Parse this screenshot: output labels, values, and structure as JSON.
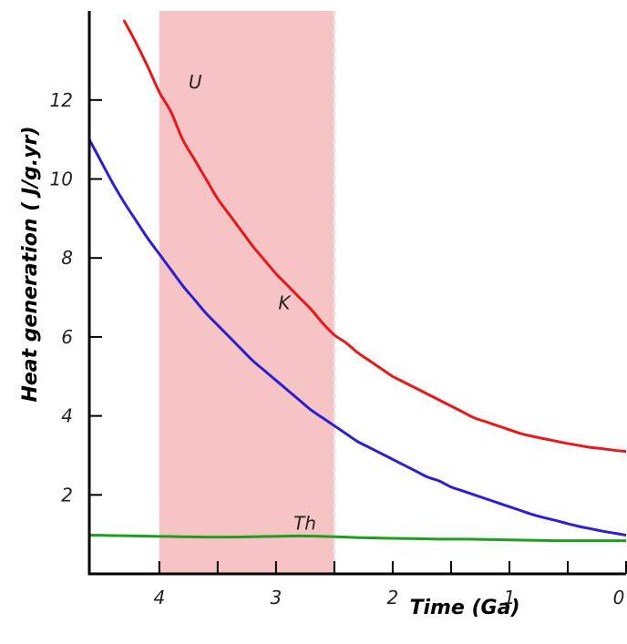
{
  "chart_data": {
    "type": "line",
    "title": "",
    "xlabel": "Time (Ga)",
    "ylabel": "Heat generation ( J/g.yr)",
    "xlim": [
      4.6,
      0
    ],
    "ylim": [
      0,
      14
    ],
    "x_reversed": true,
    "grid": false,
    "x_ticks": [
      4,
      3.5,
      3,
      2.5,
      2,
      1.5,
      1,
      0.5,
      0
    ],
    "x_tick_labels": [
      {
        "value": 4,
        "label": "4"
      },
      {
        "value": 3,
        "label": "3"
      },
      {
        "value": 2,
        "label": "2"
      },
      {
        "value": 1,
        "label": "1"
      },
      {
        "value": 0,
        "label": "0"
      }
    ],
    "y_ticks": [
      2,
      4,
      6,
      8,
      10,
      12
    ],
    "y_tick_labels": [
      {
        "value": 2,
        "label": "2"
      },
      {
        "value": 4,
        "label": "4"
      },
      {
        "value": 6,
        "label": "6"
      },
      {
        "value": 8,
        "label": "8"
      },
      {
        "value": 10,
        "label": "10"
      },
      {
        "value": 12,
        "label": "12"
      }
    ],
    "shaded_region": {
      "x_start": 4.0,
      "x_end": 2.5,
      "color": "#f7c4c6",
      "edge_color": "#f5dcdc"
    },
    "series": [
      {
        "name": "U",
        "color": "#e8181a",
        "label": "U",
        "label_at": {
          "x": 3.75,
          "y": 12.3
        },
        "points": [
          [
            4.3,
            14.0
          ],
          [
            4.2,
            13.45
          ],
          [
            4.1,
            12.85
          ],
          [
            4.0,
            12.2
          ],
          [
            3.9,
            11.7
          ],
          [
            3.8,
            11.0
          ],
          [
            3.7,
            10.5
          ],
          [
            3.6,
            10.0
          ],
          [
            3.5,
            9.5
          ],
          [
            3.4,
            9.1
          ],
          [
            3.3,
            8.7
          ],
          [
            3.2,
            8.3
          ],
          [
            3.1,
            7.95
          ],
          [
            3.0,
            7.6
          ],
          [
            2.9,
            7.3
          ],
          [
            2.8,
            7.0
          ],
          [
            2.7,
            6.7
          ],
          [
            2.6,
            6.35
          ],
          [
            2.5,
            6.05
          ],
          [
            2.4,
            5.85
          ],
          [
            2.3,
            5.6
          ],
          [
            2.2,
            5.4
          ],
          [
            2.1,
            5.2
          ],
          [
            2.0,
            5.0
          ],
          [
            1.9,
            4.85
          ],
          [
            1.8,
            4.7
          ],
          [
            1.7,
            4.55
          ],
          [
            1.6,
            4.4
          ],
          [
            1.5,
            4.25
          ],
          [
            1.4,
            4.1
          ],
          [
            1.3,
            3.95
          ],
          [
            1.2,
            3.85
          ],
          [
            1.1,
            3.75
          ],
          [
            1.0,
            3.65
          ],
          [
            0.9,
            3.55
          ],
          [
            0.8,
            3.48
          ],
          [
            0.7,
            3.42
          ],
          [
            0.6,
            3.36
          ],
          [
            0.5,
            3.3
          ],
          [
            0.4,
            3.25
          ],
          [
            0.3,
            3.2
          ],
          [
            0.2,
            3.17
          ],
          [
            0.1,
            3.13
          ],
          [
            0.0,
            3.1
          ]
        ]
      },
      {
        "name": "K",
        "color": "#2b1fd0",
        "label": "K",
        "label_at": {
          "x": 2.98,
          "y": 6.7
        },
        "points": [
          [
            4.6,
            11.0
          ],
          [
            4.5,
            10.45
          ],
          [
            4.4,
            9.9
          ],
          [
            4.3,
            9.4
          ],
          [
            4.2,
            8.95
          ],
          [
            4.1,
            8.5
          ],
          [
            4.0,
            8.1
          ],
          [
            3.9,
            7.7
          ],
          [
            3.8,
            7.3
          ],
          [
            3.7,
            6.95
          ],
          [
            3.6,
            6.6
          ],
          [
            3.5,
            6.3
          ],
          [
            3.4,
            6.0
          ],
          [
            3.3,
            5.7
          ],
          [
            3.2,
            5.4
          ],
          [
            3.1,
            5.15
          ],
          [
            3.0,
            4.9
          ],
          [
            2.9,
            4.65
          ],
          [
            2.8,
            4.4
          ],
          [
            2.7,
            4.15
          ],
          [
            2.6,
            3.95
          ],
          [
            2.5,
            3.75
          ],
          [
            2.4,
            3.55
          ],
          [
            2.3,
            3.35
          ],
          [
            2.2,
            3.2
          ],
          [
            2.1,
            3.05
          ],
          [
            2.0,
            2.9
          ],
          [
            1.9,
            2.75
          ],
          [
            1.8,
            2.6
          ],
          [
            1.7,
            2.45
          ],
          [
            1.6,
            2.35
          ],
          [
            1.5,
            2.2
          ],
          [
            1.4,
            2.1
          ],
          [
            1.3,
            2.0
          ],
          [
            1.2,
            1.9
          ],
          [
            1.1,
            1.8
          ],
          [
            1.0,
            1.7
          ],
          [
            0.9,
            1.6
          ],
          [
            0.8,
            1.5
          ],
          [
            0.7,
            1.42
          ],
          [
            0.6,
            1.35
          ],
          [
            0.5,
            1.27
          ],
          [
            0.4,
            1.2
          ],
          [
            0.3,
            1.14
          ],
          [
            0.2,
            1.08
          ],
          [
            0.1,
            1.03
          ],
          [
            0.0,
            0.98
          ]
        ]
      },
      {
        "name": "Th",
        "color": "#1e9e1e",
        "label": "Th",
        "label_at": {
          "x": 2.85,
          "y": 1.12
        },
        "points": [
          [
            4.6,
            0.98
          ],
          [
            4.4,
            0.97
          ],
          [
            4.2,
            0.96
          ],
          [
            4.0,
            0.95
          ],
          [
            3.8,
            0.94
          ],
          [
            3.6,
            0.93
          ],
          [
            3.4,
            0.93
          ],
          [
            3.2,
            0.94
          ],
          [
            3.0,
            0.95
          ],
          [
            2.8,
            0.96
          ],
          [
            2.6,
            0.95
          ],
          [
            2.4,
            0.93
          ],
          [
            2.2,
            0.91
          ],
          [
            2.0,
            0.9
          ],
          [
            1.8,
            0.89
          ],
          [
            1.6,
            0.88
          ],
          [
            1.4,
            0.88
          ],
          [
            1.2,
            0.87
          ],
          [
            1.0,
            0.86
          ],
          [
            0.8,
            0.85
          ],
          [
            0.6,
            0.84
          ],
          [
            0.4,
            0.84
          ],
          [
            0.2,
            0.84
          ],
          [
            0.0,
            0.84
          ]
        ]
      }
    ]
  }
}
